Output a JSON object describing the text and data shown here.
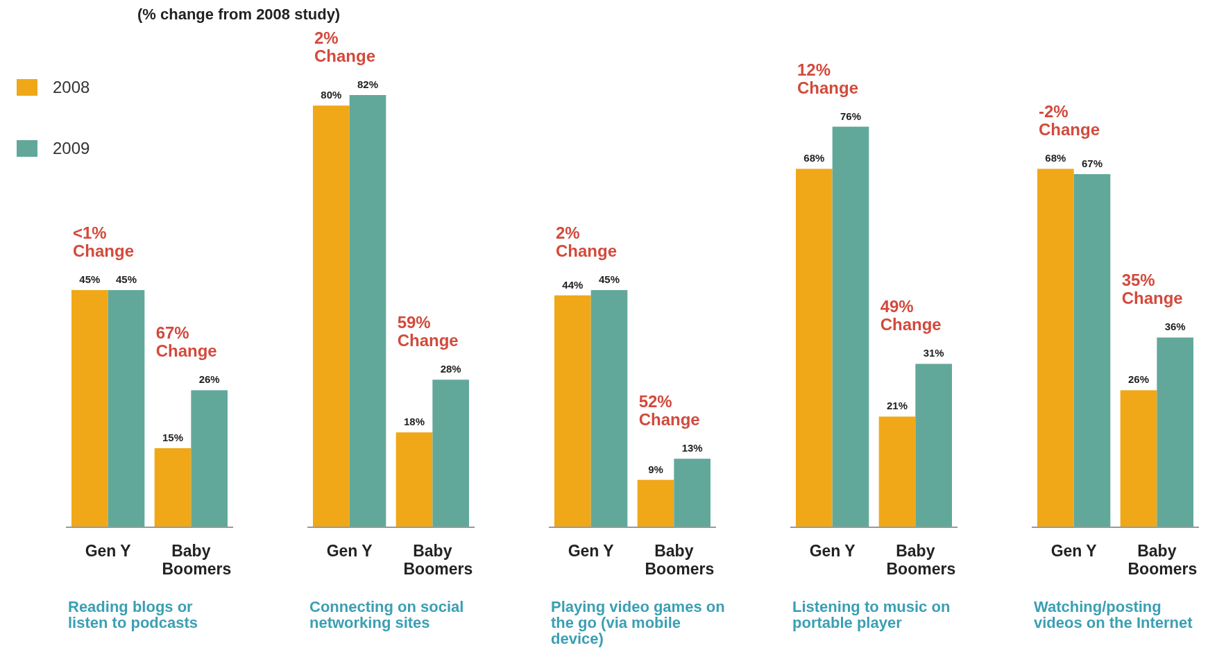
{
  "chart_data": [
    {
      "type": "bar",
      "subtitle": "(% change from 2008 study)",
      "categories": [
        "Gen Y",
        "Baby Boomers"
      ],
      "xlabel": "Reading blogs or listen to podcasts",
      "legend": "top left",
      "series": [
        {
          "name": "2008",
          "color": "#f0a818",
          "values": [
            45,
            15
          ],
          "value_labels": [
            "45%",
            "15%"
          ]
        },
        {
          "name": "2009",
          "color": "#62a89a",
          "values": [
            45,
            26
          ],
          "value_labels": [
            "45%",
            "26%"
          ]
        }
      ],
      "annotations": [
        "<1% Change",
        "67% Change"
      ]
    },
    {
      "type": "bar",
      "categories": [
        "Gen Y",
        "Baby Boomers"
      ],
      "xlabel": "Connecting on social networking sites",
      "series": [
        {
          "color": "#f0a818",
          "values": [
            80,
            18
          ],
          "value_labels": [
            "80%",
            "18%"
          ]
        },
        {
          "color": "#62a89a",
          "values": [
            82,
            28
          ],
          "value_labels": [
            "82%",
            "28%"
          ]
        }
      ],
      "annotations": [
        "2% Change",
        "59% Change"
      ]
    },
    {
      "type": "bar",
      "categories": [
        "Gen Y",
        "Baby Boomers"
      ],
      "xlabel": "Playing video games on the go (via mobile device)",
      "series": [
        {
          "color": "#f0a818",
          "values": [
            44,
            9
          ],
          "value_labels": [
            "44%",
            "9%"
          ]
        },
        {
          "color": "#62a89a",
          "values": [
            45,
            13
          ],
          "value_labels": [
            "45%",
            "13%"
          ]
        }
      ],
      "annotations": [
        "2% Change",
        "52% Change"
      ]
    },
    {
      "type": "bar",
      "categories": [
        "Gen Y",
        "Baby Boomers"
      ],
      "xlabel": "Listening to music on portable player",
      "series": [
        {
          "color": "#f0a818",
          "values": [
            68,
            21
          ],
          "value_labels": [
            "68%",
            "21%"
          ]
        },
        {
          "color": "#62a89a",
          "values": [
            76,
            31
          ],
          "value_labels": [
            "76%",
            "31%"
          ]
        }
      ],
      "annotations": [
        "12% Change",
        "49% Change"
      ]
    },
    {
      "type": "bar",
      "categories": [
        "Gen Y",
        "Baby Boomers"
      ],
      "xlabel": "Watching/posting videos on the Internet",
      "series": [
        {
          "color": "#f0a818",
          "values": [
            68,
            26
          ],
          "value_labels": [
            "68%",
            "26%"
          ]
        },
        {
          "color": "#62a89a",
          "values": [
            67,
            36
          ],
          "value_labels": [
            "67%",
            "36%"
          ]
        }
      ],
      "annotations": [
        "-2% Change",
        "35% Change"
      ]
    }
  ]
}
